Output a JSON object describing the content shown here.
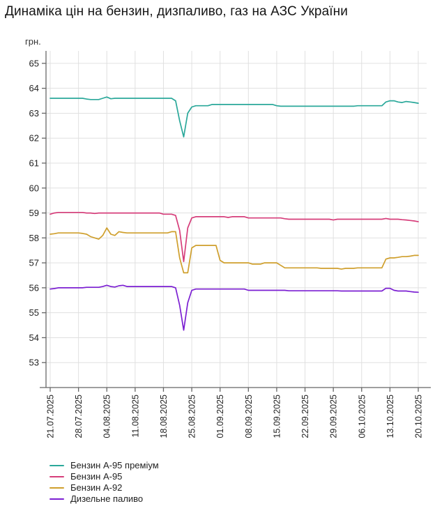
{
  "title": "Динаміка цін на бензин, дизпаливо, газ на АЗС України",
  "y_axis_unit": "грн.",
  "colors": {
    "background": "#ffffff",
    "grid": "#e0e0e0",
    "axis": "#666666",
    "tick_label": "#222222",
    "title_text": "#151515"
  },
  "chart_data": {
    "type": "line",
    "title": "Динаміка цін на бензин, дизпаливо, газ на АЗС України",
    "xlabel": "",
    "ylabel": "грн.",
    "ylim": [
      52,
      65.5
    ],
    "y_ticks": [
      53,
      54,
      55,
      56,
      57,
      58,
      59,
      60,
      61,
      62,
      63,
      64,
      65
    ],
    "grid": true,
    "legend_position": "bottom-left",
    "x_interval": "daily",
    "x_start_date": "21.07.2025",
    "x_end_date": "20.10.2025",
    "x_points": 92,
    "x_tick_day_indices": [
      0,
      7,
      14,
      21,
      28,
      35,
      42,
      49,
      56,
      63,
      70,
      77,
      84,
      91
    ],
    "x_tick_labels": [
      "21.07.2025",
      "28.07.2025",
      "04.08.2025",
      "11.08.2025",
      "18.08.2025",
      "25.08.2025",
      "01.09.2025",
      "08.09.2025",
      "15.09.2025",
      "22.09.2025",
      "29.09.2025",
      "06.10.2025",
      "13.10.2025",
      "20.10.2025"
    ],
    "series": [
      {
        "name": "Бензин А-95 преміум",
        "color": "#2aa89a",
        "values": [
          63.6,
          63.6,
          63.6,
          63.6,
          63.6,
          63.6,
          63.6,
          63.6,
          63.6,
          63.57,
          63.55,
          63.55,
          63.55,
          63.6,
          63.65,
          63.58,
          63.6,
          63.6,
          63.6,
          63.6,
          63.6,
          63.6,
          63.6,
          63.6,
          63.6,
          63.6,
          63.6,
          63.6,
          63.6,
          63.6,
          63.6,
          63.5,
          62.7,
          62.05,
          63.0,
          63.25,
          63.3,
          63.3,
          63.3,
          63.3,
          63.35,
          63.35,
          63.35,
          63.35,
          63.35,
          63.35,
          63.35,
          63.35,
          63.35,
          63.35,
          63.35,
          63.35,
          63.35,
          63.35,
          63.35,
          63.35,
          63.3,
          63.28,
          63.28,
          63.28,
          63.28,
          63.28,
          63.28,
          63.28,
          63.28,
          63.28,
          63.28,
          63.28,
          63.28,
          63.28,
          63.28,
          63.28,
          63.28,
          63.28,
          63.28,
          63.28,
          63.3,
          63.3,
          63.3,
          63.3,
          63.3,
          63.3,
          63.3,
          63.45,
          63.5,
          63.5,
          63.45,
          63.43,
          63.47,
          63.45,
          63.43,
          63.4
        ]
      },
      {
        "name": "Бензин А-95",
        "color": "#d63d7a",
        "values": [
          58.95,
          59.0,
          59.02,
          59.02,
          59.02,
          59.02,
          59.02,
          59.02,
          59.02,
          59.0,
          59.0,
          58.98,
          59.0,
          59.0,
          59.0,
          59.0,
          59.0,
          59.0,
          59.0,
          59.0,
          59.0,
          59.0,
          59.0,
          59.0,
          59.0,
          59.0,
          59.0,
          59.0,
          58.95,
          58.95,
          58.95,
          58.9,
          58.3,
          57.05,
          58.4,
          58.8,
          58.85,
          58.85,
          58.85,
          58.85,
          58.85,
          58.85,
          58.85,
          58.85,
          58.82,
          58.85,
          58.85,
          58.85,
          58.85,
          58.8,
          58.8,
          58.8,
          58.8,
          58.8,
          58.8,
          58.8,
          58.8,
          58.8,
          58.77,
          58.75,
          58.75,
          58.75,
          58.75,
          58.75,
          58.75,
          58.75,
          58.75,
          58.75,
          58.75,
          58.75,
          58.72,
          58.75,
          58.75,
          58.75,
          58.75,
          58.75,
          58.75,
          58.75,
          58.75,
          58.75,
          58.75,
          58.75,
          58.75,
          58.78,
          58.75,
          58.75,
          58.75,
          58.73,
          58.72,
          58.7,
          58.68,
          58.65
        ]
      },
      {
        "name": "Бензин А-92",
        "color": "#cf9f2c",
        "values": [
          58.15,
          58.17,
          58.2,
          58.2,
          58.2,
          58.2,
          58.2,
          58.2,
          58.18,
          58.15,
          58.05,
          58.0,
          57.95,
          58.1,
          58.4,
          58.15,
          58.1,
          58.25,
          58.22,
          58.2,
          58.2,
          58.2,
          58.2,
          58.2,
          58.2,
          58.2,
          58.2,
          58.2,
          58.2,
          58.2,
          58.25,
          58.25,
          57.2,
          56.6,
          56.6,
          57.6,
          57.7,
          57.7,
          57.7,
          57.7,
          57.7,
          57.7,
          57.1,
          57.0,
          57.0,
          57.0,
          57.0,
          57.0,
          57.0,
          57.0,
          56.95,
          56.95,
          56.95,
          57.0,
          57.0,
          57.0,
          57.0,
          56.9,
          56.8,
          56.8,
          56.8,
          56.8,
          56.8,
          56.8,
          56.8,
          56.8,
          56.8,
          56.78,
          56.78,
          56.78,
          56.78,
          56.78,
          56.75,
          56.78,
          56.78,
          56.78,
          56.8,
          56.8,
          56.8,
          56.8,
          56.8,
          56.8,
          56.8,
          57.15,
          57.2,
          57.2,
          57.22,
          57.25,
          57.25,
          57.27,
          57.3,
          57.3
        ]
      },
      {
        "name": "Дизельне паливо",
        "color": "#7b1fd2",
        "values": [
          55.95,
          55.97,
          56.0,
          56.0,
          56.0,
          56.0,
          56.0,
          56.0,
          56.0,
          56.02,
          56.02,
          56.02,
          56.02,
          56.05,
          56.1,
          56.05,
          56.03,
          56.08,
          56.1,
          56.05,
          56.05,
          56.05,
          56.05,
          56.05,
          56.05,
          56.05,
          56.05,
          56.05,
          56.05,
          56.05,
          56.05,
          56.0,
          55.3,
          54.3,
          55.4,
          55.9,
          55.95,
          55.95,
          55.95,
          55.95,
          55.95,
          55.95,
          55.95,
          55.95,
          55.95,
          55.95,
          55.95,
          55.95,
          55.95,
          55.9,
          55.9,
          55.9,
          55.9,
          55.9,
          55.9,
          55.9,
          55.9,
          55.9,
          55.9,
          55.88,
          55.88,
          55.88,
          55.88,
          55.88,
          55.88,
          55.88,
          55.88,
          55.88,
          55.88,
          55.88,
          55.88,
          55.88,
          55.87,
          55.87,
          55.87,
          55.87,
          55.87,
          55.87,
          55.87,
          55.87,
          55.87,
          55.87,
          55.87,
          55.98,
          55.98,
          55.9,
          55.87,
          55.87,
          55.87,
          55.85,
          55.83,
          55.82
        ]
      }
    ]
  }
}
